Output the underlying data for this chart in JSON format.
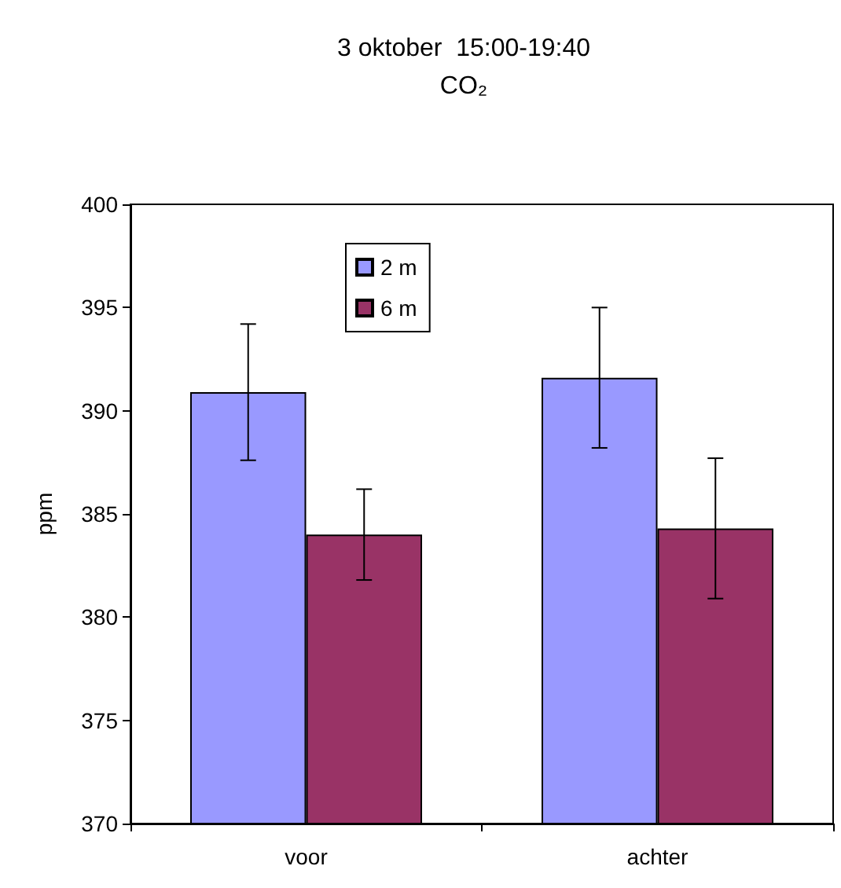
{
  "chart_data": {
    "type": "bar",
    "title": "3 oktober  15:00-19:40",
    "subtitle": "CO₂",
    "ylabel": "ppm",
    "categories": [
      "voor",
      "achter"
    ],
    "series": [
      {
        "name": "2 m",
        "color": "#9999ff",
        "values": [
          390.9,
          391.6
        ],
        "errors": [
          3.3,
          3.4
        ]
      },
      {
        "name": "6 m",
        "color": "#993366",
        "values": [
          384.0,
          384.3
        ],
        "errors": [
          2.2,
          3.4
        ]
      }
    ],
    "ylim": [
      370,
      400
    ],
    "yticks": [
      370,
      375,
      380,
      385,
      390,
      395,
      400
    ],
    "grid": false,
    "legend": "top"
  }
}
